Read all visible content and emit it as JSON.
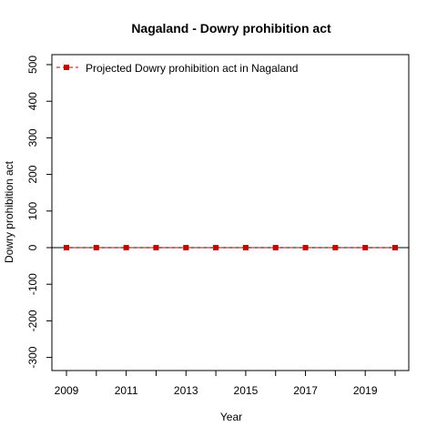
{
  "chart_data": {
    "type": "line",
    "title": "Nagaland  -  Dowry prohibition act",
    "xlabel": "Year",
    "ylabel": "Dowry prohibition act",
    "x": [
      2009,
      2010,
      2011,
      2012,
      2013,
      2014,
      2015,
      2016,
      2017,
      2018,
      2019,
      2020
    ],
    "series": [
      {
        "name": "Projected  Dowry prohibition act  in  Nagaland",
        "values": [
          0,
          0,
          0,
          0,
          0,
          0,
          0,
          0,
          0,
          0,
          0,
          0
        ],
        "color": "#cc0000",
        "line_style": "dashed",
        "marker": "square"
      }
    ],
    "xlim": [
      2009,
      2020
    ],
    "ylim": [
      -300,
      500
    ],
    "x_ticks": [
      2009,
      2010,
      2011,
      2012,
      2013,
      2014,
      2015,
      2016,
      2017,
      2018,
      2019,
      2020
    ],
    "x_tick_labels": [
      "2009",
      "",
      "2011",
      "",
      "2013",
      "",
      "2015",
      "",
      "2017",
      "",
      "2019",
      ""
    ],
    "y_ticks": [
      -300,
      -200,
      -100,
      0,
      100,
      200,
      300,
      400,
      500
    ],
    "y_tick_labels": [
      "-300",
      "-200",
      "-100",
      "0",
      "100",
      "200",
      "300",
      "400",
      "500"
    ],
    "reference_line_y": 0,
    "grid": false,
    "legend_position": "top-left"
  }
}
